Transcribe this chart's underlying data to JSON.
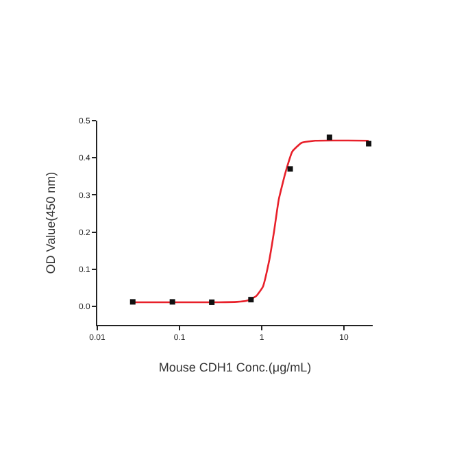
{
  "chart_data": {
    "type": "scatter",
    "xlabel": "Mouse CDH1 Conc.(μg/mL)",
    "ylabel": "OD Value(450 nm)",
    "log": "x",
    "xlim": [
      0.01,
      22.4
    ],
    "xticks": [
      {
        "value": 0.01,
        "label": "0.01"
      },
      {
        "value": 0.1,
        "label": "0.1"
      },
      {
        "value": 1,
        "label": "1"
      },
      {
        "value": 10,
        "label": "10"
      }
    ],
    "ylim": [
      -0.05,
      0.5
    ],
    "yticks": [
      {
        "value": 0,
        "label": "0.0"
      },
      {
        "value": 0.1,
        "label": "0.1"
      },
      {
        "value": 0.2,
        "label": "0.2"
      },
      {
        "value": 0.3,
        "label": "0.3"
      },
      {
        "value": 0.4,
        "label": "0.4"
      },
      {
        "value": 0.5,
        "label": "0.5"
      }
    ],
    "series": [
      {
        "type": "line",
        "color": "#e8202a",
        "marker": "none",
        "line_style": "solid",
        "x": [
          0.027,
          0.1,
          0.3,
          0.5,
          0.656,
          0.85,
          1.03,
          1.24,
          1.41,
          1.61,
          1.95,
          2.36,
          3.04,
          4.47,
          20
        ],
        "values": [
          0.011,
          0.011,
          0.011,
          0.012,
          0.015,
          0.027,
          0.052,
          0.126,
          0.2,
          0.287,
          0.361,
          0.417,
          0.44,
          0.446,
          0.446
        ]
      },
      {
        "color": "#111111",
        "marker": "square",
        "x": [
          0.027,
          0.082,
          0.247,
          0.74,
          2.22,
          6.67,
          20
        ],
        "values": [
          0.012,
          0.012,
          0.011,
          0.018,
          0.37,
          0.455,
          0.438
        ]
      }
    ]
  }
}
